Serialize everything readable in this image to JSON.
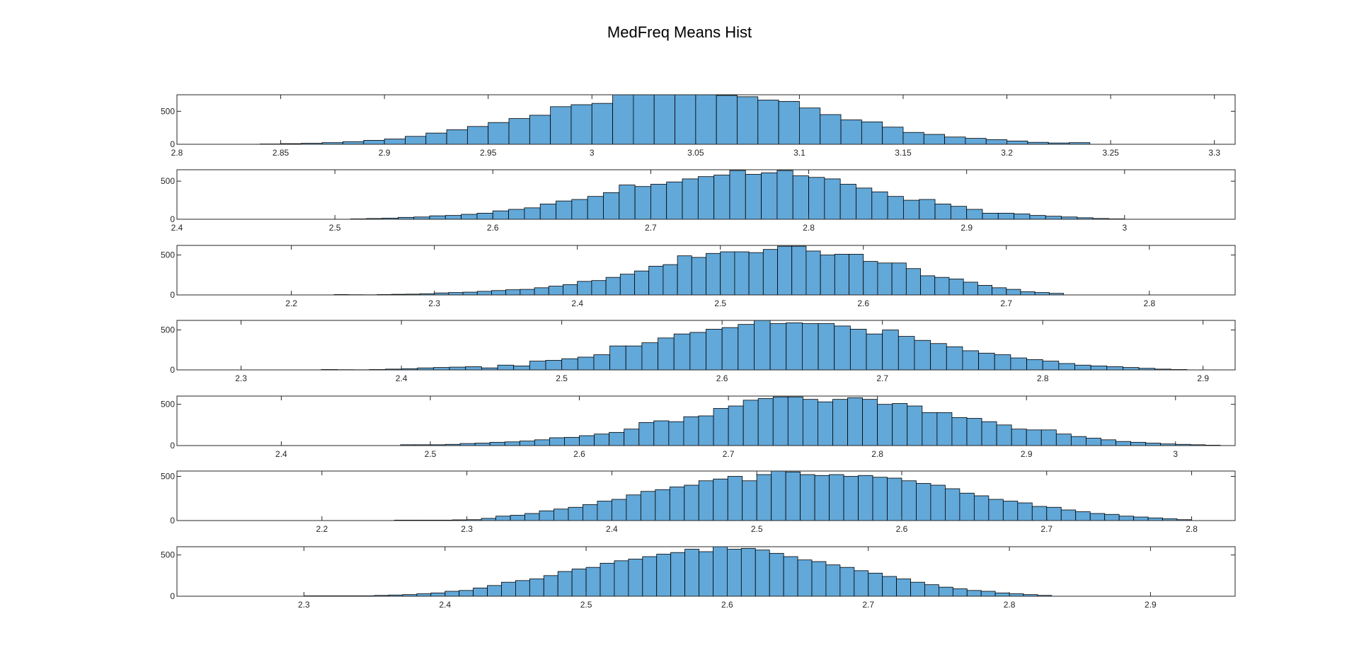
{
  "title": "MedFreq Means Hist",
  "bar_fill": "#62A8D9",
  "bar_edge": "#000000",
  "axis_color": "#262626",
  "chart_data": [
    {
      "type": "bar",
      "xlim": [
        2.8,
        3.31
      ],
      "ylim": [
        0,
        750
      ],
      "xticks": [
        "2.8",
        "2.85",
        "2.9",
        "2.95",
        "3",
        "3.05",
        "3.1",
        "3.15",
        "3.2",
        "3.25",
        "3.3"
      ],
      "yticks": [
        "0",
        "500"
      ],
      "bin_start": 2.84,
      "bin_width": 0.01,
      "counts": [
        5,
        10,
        15,
        25,
        40,
        60,
        80,
        120,
        170,
        220,
        270,
        330,
        390,
        440,
        570,
        600,
        620,
        780,
        770,
        780,
        770,
        760,
        740,
        720,
        670,
        650,
        550,
        450,
        370,
        340,
        260,
        180,
        150,
        110,
        90,
        70,
        50,
        30,
        20,
        25
      ]
    },
    {
      "type": "bar",
      "xlim": [
        2.4,
        3.07
      ],
      "ylim": [
        0,
        650
      ],
      "xticks": [
        "2.4",
        "2.5",
        "2.6",
        "2.7",
        "2.8",
        "2.9",
        "3"
      ],
      "yticks": [
        "0",
        "500"
      ],
      "bin_start": 2.51,
      "bin_width": 0.01,
      "counts": [
        5,
        10,
        15,
        25,
        30,
        45,
        50,
        65,
        80,
        110,
        130,
        150,
        200,
        240,
        260,
        300,
        350,
        450,
        430,
        460,
        490,
        530,
        560,
        580,
        640,
        590,
        610,
        640,
        570,
        550,
        530,
        460,
        410,
        360,
        300,
        250,
        260,
        200,
        170,
        130,
        80,
        80,
        70,
        50,
        40,
        30,
        20,
        10,
        5
      ]
    },
    {
      "type": "bar",
      "xlim": [
        2.12,
        2.86
      ],
      "ylim": [
        0,
        620
      ],
      "xticks": [
        "2.2",
        "2.3",
        "2.4",
        "2.5",
        "2.6",
        "2.7",
        "2.8"
      ],
      "yticks": [
        "0",
        "500"
      ],
      "bin_start": 2.23,
      "bin_width": 0.01,
      "counts": [
        5,
        3,
        2,
        5,
        8,
        10,
        15,
        25,
        30,
        35,
        45,
        55,
        65,
        70,
        90,
        110,
        130,
        170,
        180,
        220,
        260,
        300,
        360,
        380,
        490,
        470,
        520,
        540,
        540,
        530,
        570,
        610,
        610,
        550,
        500,
        510,
        510,
        420,
        400,
        400,
        330,
        240,
        220,
        200,
        160,
        120,
        90,
        70,
        40,
        30,
        20
      ]
    },
    {
      "type": "bar",
      "xlim": [
        2.26,
        2.92
      ],
      "ylim": [
        0,
        620
      ],
      "xticks": [
        "2.3",
        "2.4",
        "2.5",
        "2.6",
        "2.7",
        "2.8",
        "2.9"
      ],
      "yticks": [
        "0",
        "500"
      ],
      "bin_start": 2.35,
      "bin_width": 0.01,
      "counts": [
        5,
        3,
        2,
        5,
        10,
        15,
        25,
        30,
        35,
        40,
        25,
        60,
        50,
        110,
        120,
        140,
        160,
        190,
        300,
        300,
        340,
        400,
        450,
        470,
        510,
        530,
        570,
        620,
        580,
        590,
        580,
        580,
        550,
        510,
        450,
        500,
        420,
        370,
        330,
        290,
        240,
        210,
        190,
        150,
        130,
        110,
        80,
        60,
        50,
        40,
        30,
        20,
        10,
        5
      ]
    },
    {
      "type": "bar",
      "xlim": [
        2.33,
        3.04
      ],
      "ylim": [
        0,
        600
      ],
      "xticks": [
        "2.4",
        "2.5",
        "2.6",
        "2.7",
        "2.8",
        "2.9",
        "3"
      ],
      "yticks": [
        "0",
        "500"
      ],
      "bin_start": 2.48,
      "bin_width": 0.01,
      "counts": [
        10,
        10,
        10,
        15,
        25,
        30,
        40,
        45,
        55,
        70,
        95,
        100,
        120,
        140,
        160,
        200,
        280,
        300,
        290,
        350,
        360,
        450,
        480,
        550,
        570,
        590,
        590,
        560,
        530,
        560,
        580,
        560,
        500,
        510,
        480,
        400,
        400,
        340,
        330,
        290,
        250,
        200,
        190,
        190,
        140,
        110,
        90,
        70,
        50,
        40,
        30,
        20,
        15,
        10,
        5
      ]
    },
    {
      "type": "bar",
      "xlim": [
        2.1,
        2.83
      ],
      "ylim": [
        0,
        560
      ],
      "xticks": [
        "2.2",
        "2.3",
        "2.4",
        "2.5",
        "2.6",
        "2.7",
        "2.8"
      ],
      "yticks": [
        "0",
        "500"
      ],
      "bin_start": 2.25,
      "bin_width": 0.01,
      "counts": [
        5,
        5,
        5,
        5,
        8,
        10,
        25,
        50,
        60,
        80,
        110,
        130,
        150,
        180,
        220,
        240,
        290,
        330,
        350,
        380,
        400,
        450,
        470,
        500,
        450,
        520,
        580,
        550,
        520,
        510,
        520,
        500,
        510,
        490,
        480,
        450,
        420,
        400,
        360,
        310,
        280,
        240,
        220,
        200,
        160,
        150,
        120,
        100,
        80,
        70,
        50,
        40,
        30,
        20,
        10
      ]
    },
    {
      "type": "bar",
      "xlim": [
        2.21,
        2.96
      ],
      "ylim": [
        0,
        600
      ],
      "xticks": [
        "2.3",
        "2.4",
        "2.5",
        "2.6",
        "2.7",
        "2.8",
        "2.9"
      ],
      "yticks": [
        "0",
        "500"
      ],
      "bin_start": 2.3,
      "bin_width": 0.01,
      "counts": [
        5,
        5,
        5,
        5,
        5,
        10,
        15,
        20,
        30,
        40,
        60,
        70,
        100,
        130,
        170,
        190,
        210,
        250,
        300,
        330,
        350,
        400,
        430,
        450,
        480,
        510,
        530,
        570,
        540,
        600,
        570,
        580,
        560,
        520,
        480,
        440,
        420,
        380,
        350,
        310,
        280,
        240,
        210,
        170,
        140,
        110,
        90,
        70,
        60,
        40,
        30,
        20,
        10
      ]
    }
  ]
}
